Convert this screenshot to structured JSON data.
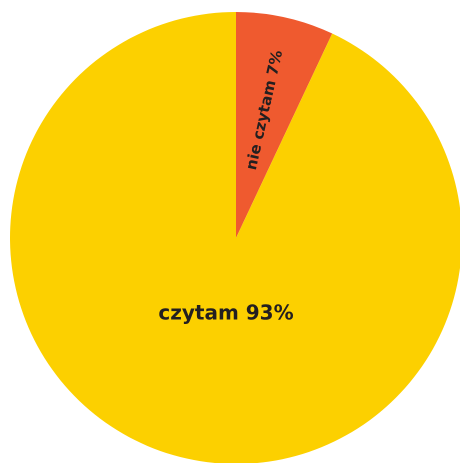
{
  "chart_data": {
    "type": "pie",
    "slices": [
      {
        "label": "nie czytam 7%",
        "value": 7,
        "color": "#ef5a2f"
      },
      {
        "label": "czytam 93%",
        "value": 93,
        "color": "#fcd000"
      }
    ],
    "start_angle_deg": 0,
    "direction": "clockwise",
    "legend": "none",
    "labels_inside": true
  }
}
